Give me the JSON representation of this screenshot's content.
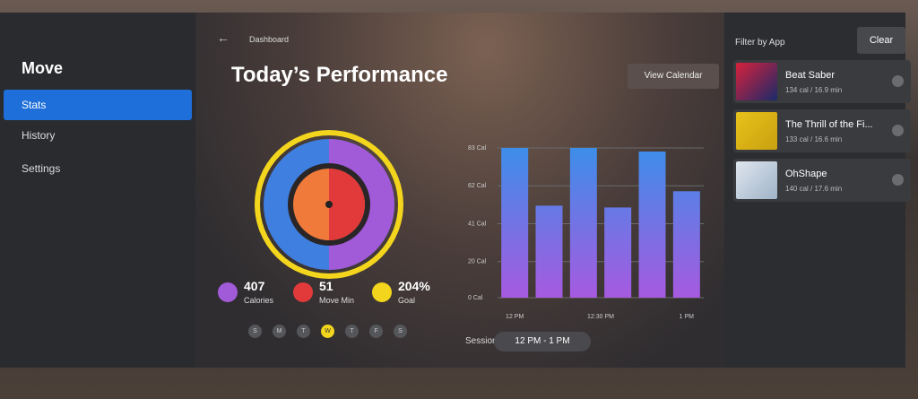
{
  "sidebar": {
    "title": "Move",
    "items": [
      "Stats",
      "History",
      "Settings"
    ]
  },
  "header": {
    "breadcrumb": "Dashboard",
    "title": "Today’s Performance",
    "button": "View Calendar"
  },
  "summary": [
    {
      "value": "407",
      "label": "Calories"
    },
    {
      "value": "51",
      "label": "Move Min"
    },
    {
      "value": "204%",
      "label": "Goal"
    }
  ],
  "days": [
    "S",
    "M",
    "T",
    "W",
    "T",
    "F",
    "S"
  ],
  "chart": {
    "type": "bar",
    "x": [
      0,
      12,
      24,
      36,
      48,
      60
    ],
    "values": [
      83,
      51,
      83,
      50,
      81,
      59
    ],
    "xlim": [
      -6,
      66
    ],
    "xticks": [
      {
        "value": 0,
        "label": "12 PM"
      },
      {
        "value": 30,
        "label": "12:30 PM"
      },
      {
        "value": 60,
        "label": "1 PM"
      }
    ],
    "ylim": [
      0,
      83
    ],
    "yticks": [
      {
        "value": 0,
        "label": "0 Cal"
      },
      {
        "value": 20,
        "label": "20 Cal"
      },
      {
        "value": 41,
        "label": "41 Cal"
      },
      {
        "value": 62,
        "label": "62 Cal"
      },
      {
        "value": 83,
        "label": "83 Cal"
      }
    ],
    "grid": true,
    "color_top": "#3d8ee9",
    "color_bottom": "#a75ae0"
  },
  "sessions": {
    "label": "Sessions",
    "value": "12 PM - 1 PM"
  },
  "filter": {
    "title": "Filter by App",
    "clear": "Clear",
    "apps": [
      {
        "name": "Beat Saber",
        "detail": "134 cal / 16.9 min"
      },
      {
        "name": "The Thrill of the Fi...",
        "detail": "133 cal / 16.6 min"
      },
      {
        "name": "OhShape",
        "detail": "140 cal / 17.6 min"
      }
    ]
  }
}
